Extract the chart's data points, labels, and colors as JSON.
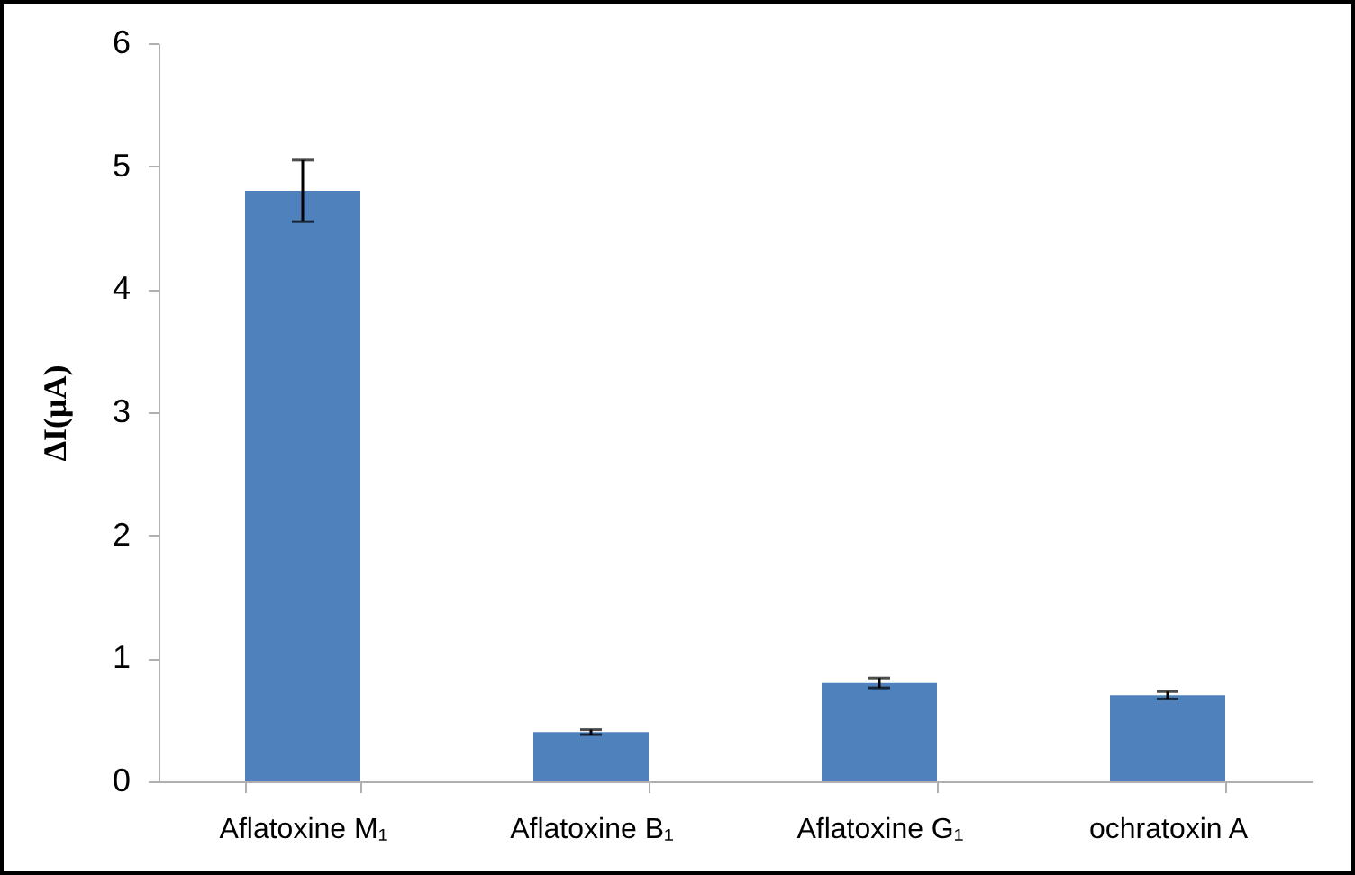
{
  "chart_data": {
    "type": "bar",
    "ylabel": "ΔI(μA)",
    "categories": [
      "Aflatoxine M₁",
      "Aflatoxine B₁",
      "Aflatoxine G₁",
      "ochratoxin A"
    ],
    "values": [
      4.8,
      0.4,
      0.8,
      0.7
    ],
    "errors": [
      0.25,
      0.02,
      0.04,
      0.03
    ],
    "color": "#4f81bd",
    "ylim": [
      0,
      6
    ],
    "yticks": [
      0,
      1,
      2,
      3,
      4,
      5,
      6
    ],
    "grid": false
  }
}
